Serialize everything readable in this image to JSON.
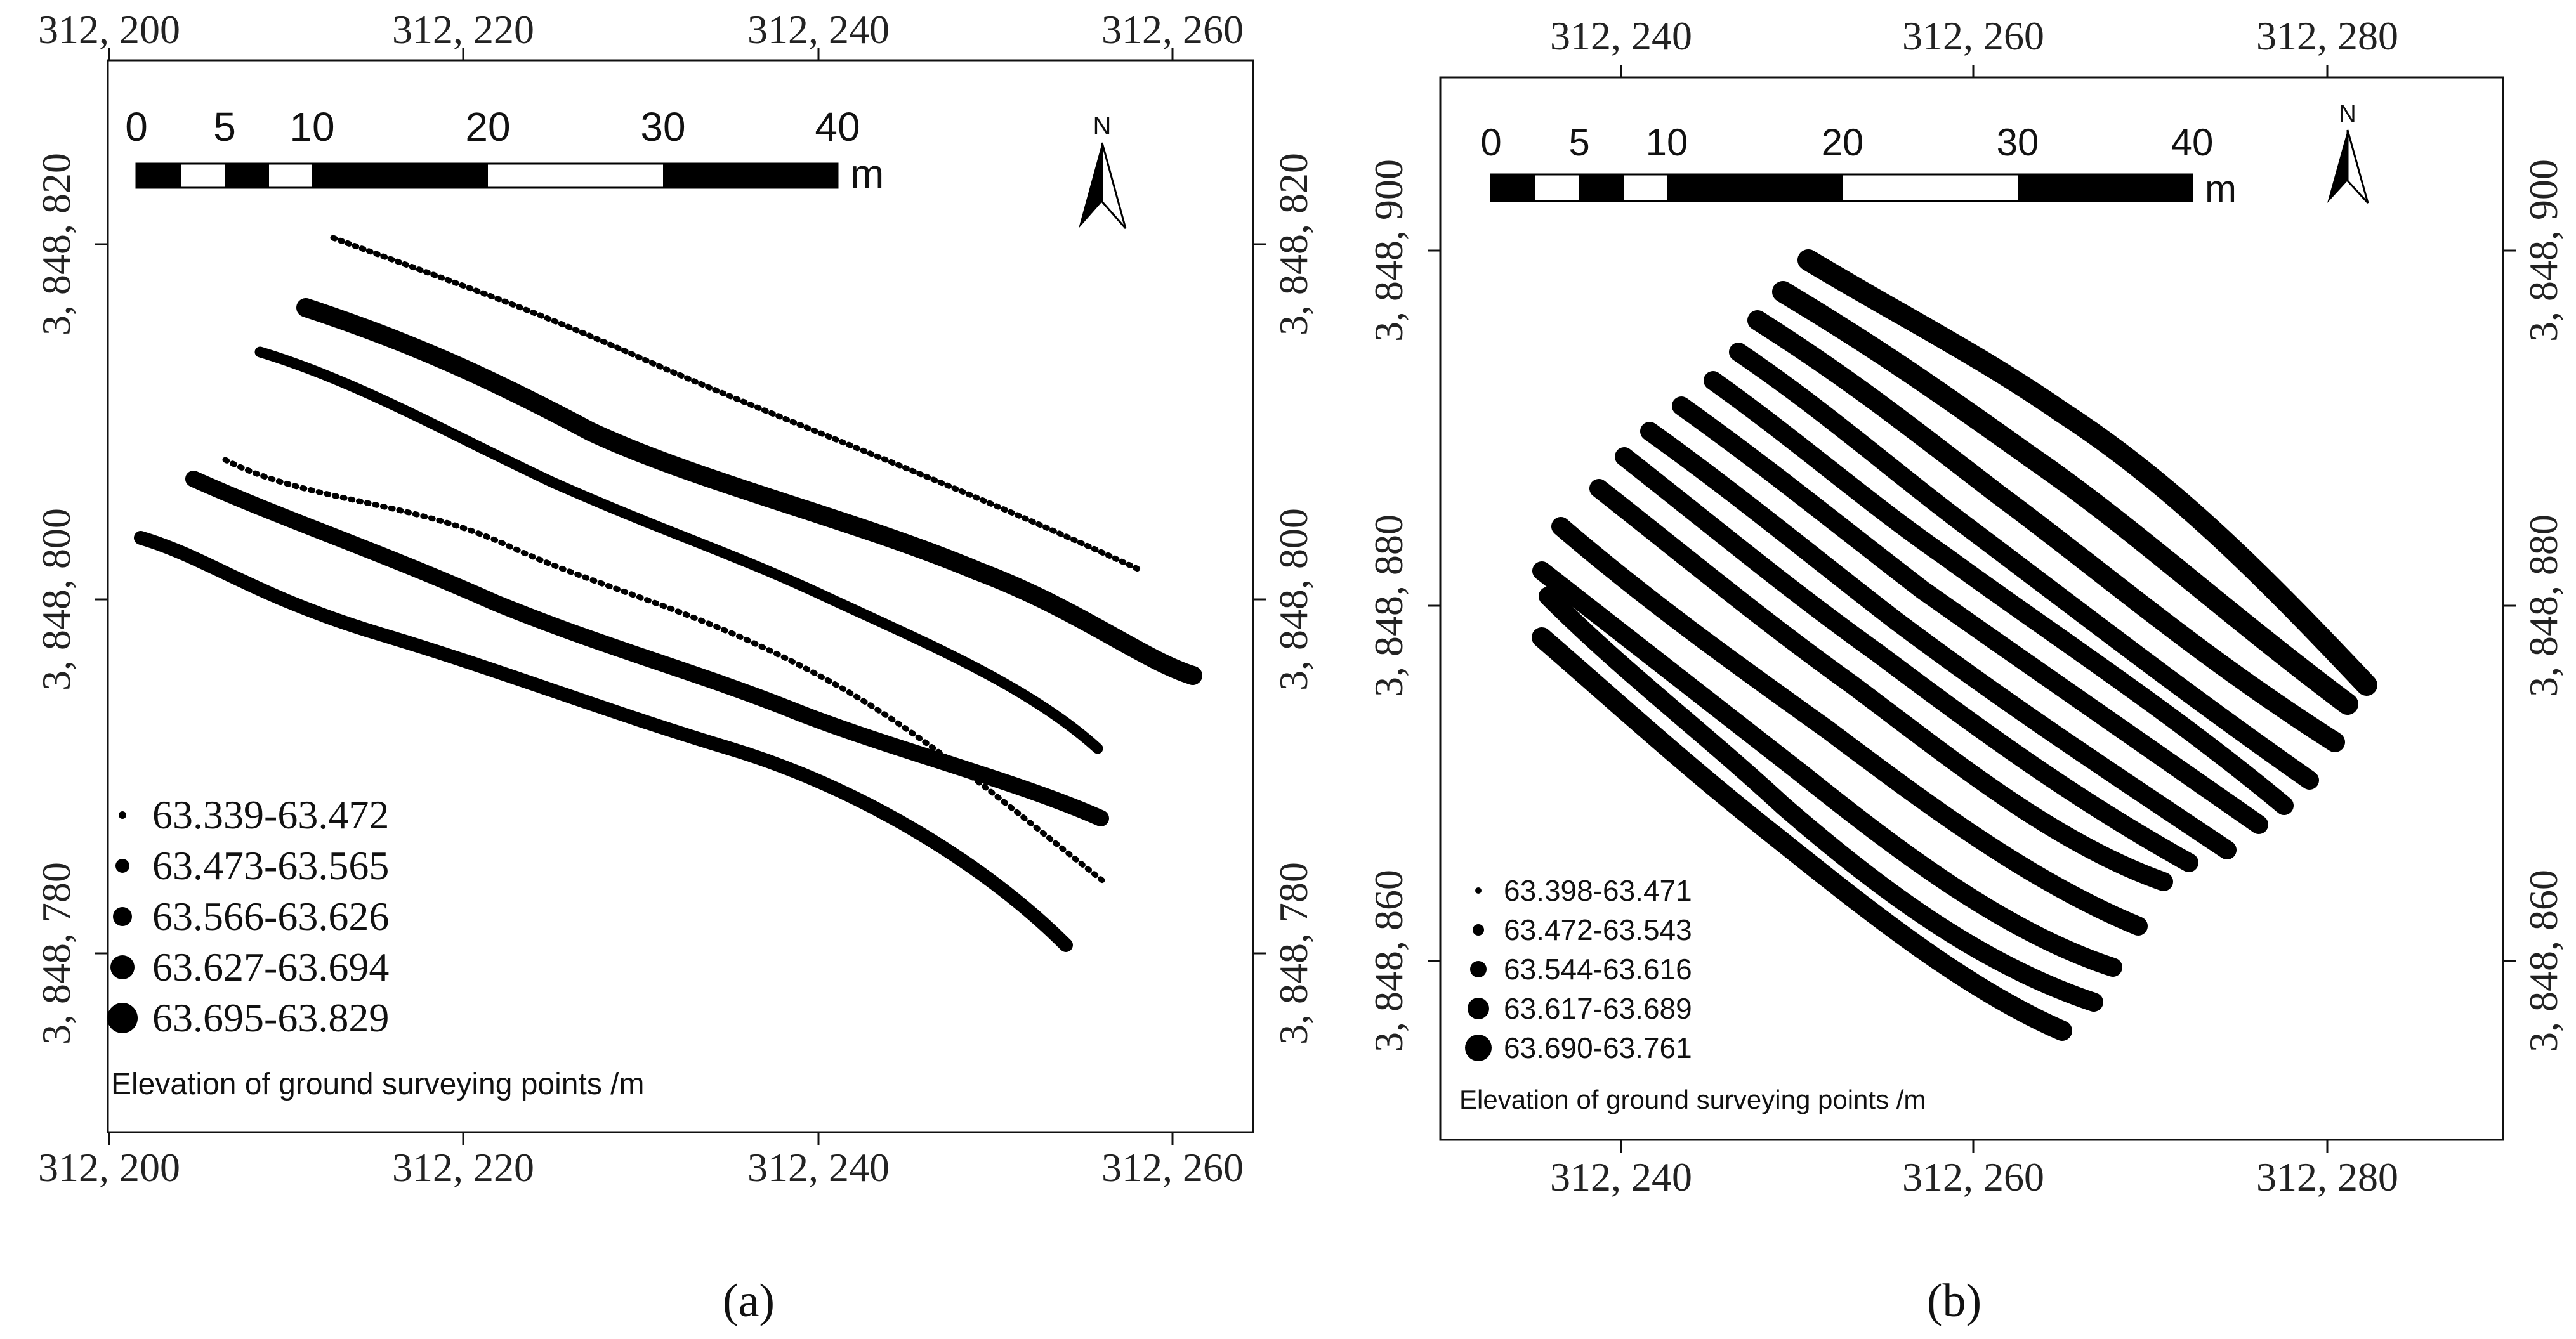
{
  "panels": [
    {
      "id": "a",
      "caption": "(a)",
      "caption_letter": "a",
      "x_ticks_top": [
        "312, 200",
        "312, 220",
        "312, 240",
        "312, 260"
      ],
      "x_ticks_bottom": [
        "312, 200",
        "312, 220",
        "312, 240",
        "312, 260"
      ],
      "y_ticks_left": [
        "3, 848, 820",
        "3, 848, 800",
        "3, 848, 780"
      ],
      "y_ticks_right": [
        "3, 848, 820",
        "3, 848, 800",
        "3, 848, 780"
      ],
      "scale_bar": {
        "labels": [
          "0",
          "5",
          "10",
          "20",
          "30",
          "40"
        ],
        "unit": "m"
      },
      "north_label": "N",
      "legend": {
        "title": "Elevation of ground surveying points /m",
        "classes": [
          "63.339-63.472",
          "63.473-63.565",
          "63.566-63.626",
          "63.627-63.694",
          "63.695-63.829"
        ]
      }
    },
    {
      "id": "b",
      "caption": "(b)",
      "caption_letter": "b",
      "x_ticks_top": [
        "312, 240",
        "312, 260",
        "312, 280"
      ],
      "x_ticks_bottom": [
        "312, 240",
        "312, 260",
        "312, 280"
      ],
      "y_ticks_left": [
        "3, 848, 900",
        "3, 848, 880",
        "3, 848, 860"
      ],
      "y_ticks_right": [
        "3, 848, 900",
        "3, 848, 880",
        "3, 848, 860"
      ],
      "scale_bar": {
        "labels": [
          "0",
          "5",
          "10",
          "20",
          "30",
          "40"
        ],
        "unit": "m"
      },
      "north_label": "N",
      "legend": {
        "title": "Elevation of ground surveying points /m",
        "classes": [
          "63.398-63.471",
          "63.472-63.543",
          "63.544-63.616",
          "63.617-63.689",
          "63.690-63.761"
        ]
      }
    }
  ],
  "colors": {
    "ink": "#000000",
    "frame": "#111111",
    "text": "#222222"
  }
}
